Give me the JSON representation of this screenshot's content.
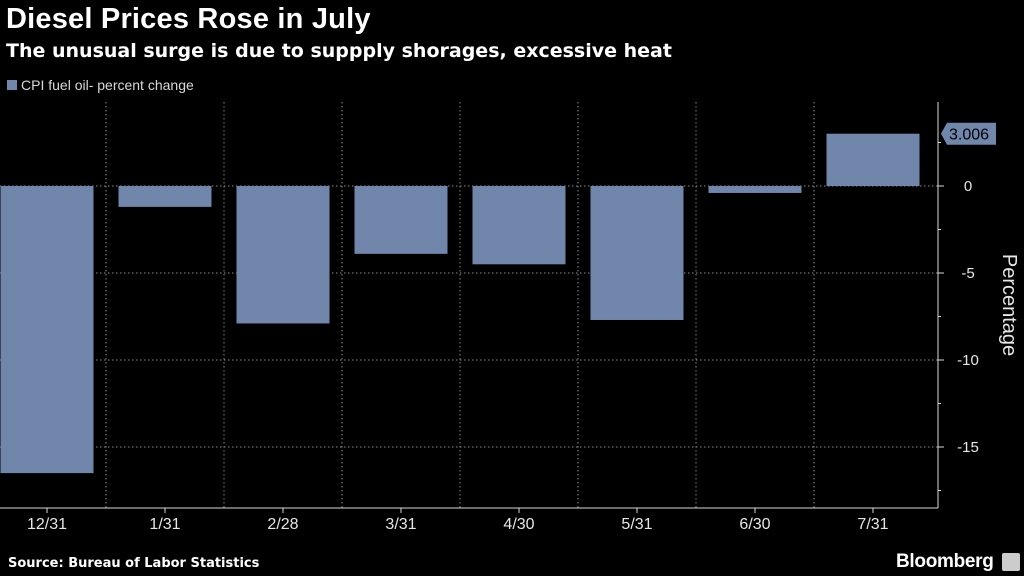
{
  "header": {
    "title": "Diesel Prices Rose in July",
    "subtitle": "The unusual surge is due to suppply shorages, excessive heat"
  },
  "footer": {
    "source": "Source: Bureau of Labor Statistics",
    "brand": "Bloomberg"
  },
  "colors": {
    "background": "#000000",
    "bar": "#7186ab",
    "grid": "#8c8c8c",
    "axis": "#d9d9d9"
  },
  "chart_data": {
    "type": "bar",
    "title": "Diesel Prices Rose in July",
    "subtitle": "The unusual surge is due to suppply shorages, excessive heat",
    "xlabel": "",
    "ylabel": "Percentage",
    "categories": [
      "12/31",
      "1/31",
      "2/28",
      "3/31",
      "4/30",
      "5/31",
      "6/30",
      "7/31"
    ],
    "series": [
      {
        "name": "CPI fuel oil- percent change",
        "values": [
          -16.5,
          -1.2,
          -7.9,
          -3.9,
          -4.5,
          -7.7,
          -0.4,
          3.006
        ]
      }
    ],
    "ylim": [
      -18,
      4.8
    ],
    "yticks": [
      0,
      -5,
      -10,
      -15
    ],
    "ytick_labels": [
      "0",
      "-5",
      "-10",
      "-15"
    ],
    "last_value_label": "3.006",
    "legend_position": "top-left",
    "yaxis_position": "right",
    "grid": true
  }
}
